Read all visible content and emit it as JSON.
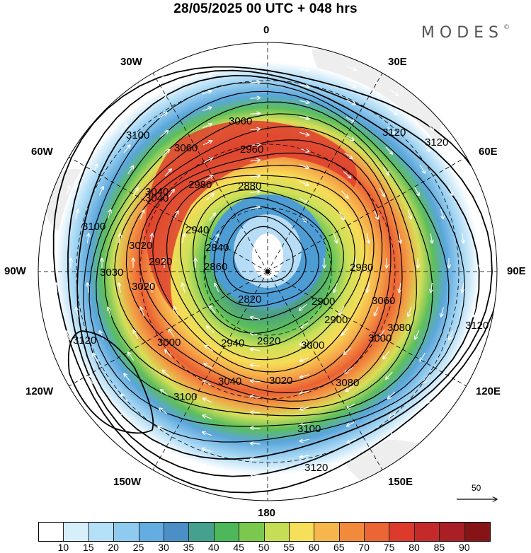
{
  "title": "28/05/2025  00 UTC  + 048 hrs",
  "brand": "MODES",
  "brand_mark": "©",
  "longitude_labels": {
    "n": "0",
    "nne": "30E",
    "ene": "60E",
    "e": "90E",
    "ese": "120E",
    "sse": "150E",
    "s": "180",
    "ssw": "150W",
    "wsw": "120W",
    "w": "90W",
    "wnw": "60W",
    "nnw": "30W"
  },
  "contour_labels": [
    "3060",
    "3060",
    "3100",
    "3120",
    "2960",
    "2880",
    "3040",
    "2980",
    "2940",
    "3020",
    "3040",
    "3100",
    "3030",
    "3020",
    "2920",
    "2860",
    "2820",
    "2900",
    "2980",
    "3060",
    "3080",
    "3120",
    "3000",
    "2940",
    "2920",
    "3000",
    "3020",
    "3040",
    "3080",
    "3100",
    "3120",
    "3120",
    "3100",
    "3120",
    "2840",
    "2900",
    "3000"
  ],
  "reference_vector": "50",
  "colorbar": {
    "colors": [
      "#ffffff",
      "#d7eefb",
      "#b6e0f7",
      "#8ecbef",
      "#63ade2",
      "#4b8fc6",
      "#45a08e",
      "#4db85a",
      "#7ac94e",
      "#c6de55",
      "#f7e059",
      "#f7b64c",
      "#f28a3b",
      "#ec6535",
      "#dc3b2c",
      "#c52a2b",
      "#a91f25",
      "#861316"
    ],
    "tick_labels": [
      "10",
      "15",
      "20",
      "25",
      "30",
      "35",
      "40",
      "45",
      "50",
      "55",
      "60",
      "65",
      "70",
      "75",
      "80",
      "85",
      "90"
    ]
  }
}
